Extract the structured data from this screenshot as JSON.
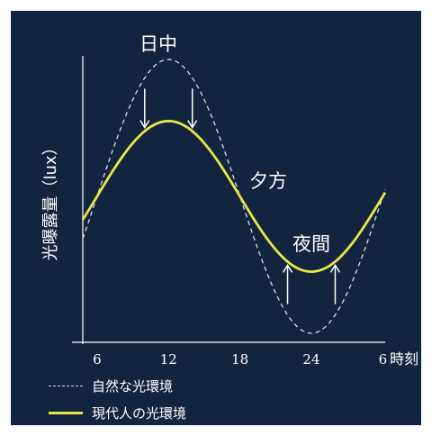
{
  "chart_data": {
    "type": "line",
    "title": "",
    "xlabel": "時刻",
    "ylabel": "光曝露量（lux）",
    "x_ticks": [
      "6",
      "12",
      "18",
      "24",
      "6"
    ],
    "x": [
      6,
      12,
      18,
      24,
      30
    ],
    "series": [
      {
        "name": "自然な光環境",
        "style": "dashed",
        "color": "#d9dde6",
        "values": [
          0,
          1.0,
          0,
          -1.0,
          0
        ]
      },
      {
        "name": "現代人の光環境",
        "style": "solid",
        "color": "#e8e64a",
        "values": [
          0,
          0.55,
          0,
          -0.55,
          0
        ]
      }
    ],
    "annotations": [
      "日中",
      "夕方",
      "夜間"
    ],
    "arrows": [
      "down",
      "down",
      "up",
      "up"
    ],
    "grid": false,
    "legend_position": "bottom-left"
  },
  "colors": {
    "background": "#13243f",
    "axis": "#ffffff",
    "natural": "#d9dde6",
    "modern": "#e8e64a"
  }
}
